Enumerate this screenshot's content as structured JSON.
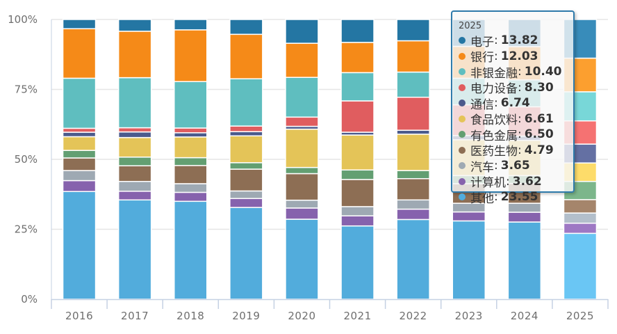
{
  "chart_data": {
    "type": "bar",
    "stacked": true,
    "normalized": true,
    "title": "",
    "xlabel": "",
    "ylabel": "",
    "ylim": [
      0,
      100
    ],
    "y_ticks": [
      "0%",
      "25%",
      "50%",
      "75%",
      "100%"
    ],
    "grid": true,
    "legend": "none",
    "categories": [
      "2016",
      "2017",
      "2018",
      "2019",
      "2020",
      "2021",
      "2022",
      "2023",
      "2024",
      "2025"
    ],
    "series": [
      {
        "name": "其他",
        "color": "#52acdc",
        "values": [
          38.5,
          35.5,
          35.0,
          32.8,
          28.6,
          26.2,
          28.5,
          28.0,
          27.6,
          23.55
        ]
      },
      {
        "name": "计算机",
        "color": "#8662ad",
        "values": [
          3.9,
          3.1,
          3.2,
          3.2,
          4.0,
          3.6,
          3.7,
          3.2,
          3.5,
          3.62
        ]
      },
      {
        "name": "汽车",
        "color": "#9ea9b3",
        "values": [
          3.6,
          3.5,
          3.1,
          2.7,
          2.8,
          3.3,
          3.3,
          3.1,
          3.2,
          3.65
        ]
      },
      {
        "name": "医药生物",
        "color": "#8d6e54",
        "values": [
          4.5,
          5.6,
          6.5,
          7.8,
          9.5,
          9.7,
          7.6,
          7.0,
          7.1,
          4.79
        ]
      },
      {
        "name": "有色金属",
        "color": "#639f72",
        "values": [
          2.7,
          3.1,
          2.8,
          2.3,
          2.2,
          3.4,
          2.9,
          2.9,
          2.8,
          6.5
        ]
      },
      {
        "name": "食品饮料",
        "color": "#e4c458",
        "values": [
          4.9,
          7.0,
          7.4,
          9.6,
          13.7,
          12.5,
          13.0,
          12.8,
          12.6,
          6.61
        ]
      },
      {
        "name": "通信",
        "color": "#4b5a8c",
        "values": [
          1.6,
          2.0,
          1.5,
          1.5,
          1.0,
          1.0,
          1.4,
          1.5,
          1.5,
          6.74
        ]
      },
      {
        "name": "电力设备",
        "color": "#e05d5f",
        "values": [
          1.4,
          1.5,
          1.7,
          2.0,
          3.3,
          11.2,
          11.8,
          11.0,
          10.5,
          8.3
        ]
      },
      {
        "name": "非银金融",
        "color": "#5fbebf",
        "values": [
          17.9,
          17.9,
          16.6,
          16.9,
          14.2,
          10.1,
          9.0,
          9.5,
          9.6,
          10.4
        ]
      },
      {
        "name": "银行",
        "color": "#f58a18",
        "values": [
          17.7,
          16.6,
          18.5,
          15.9,
          12.2,
          10.8,
          11.2,
          11.4,
          11.9,
          12.03
        ]
      },
      {
        "name": "电子",
        "color": "#2476a3",
        "values": [
          3.3,
          4.2,
          3.7,
          5.3,
          8.5,
          8.2,
          7.6,
          9.6,
          9.7,
          13.82
        ]
      }
    ],
    "highlighted_category": "2025",
    "highlight_colors": [
      "#6ac6f4",
      "#9e78c4",
      "#b3bfcb",
      "#a5856b",
      "#7cb68b",
      "#fddc6a",
      "#6470a3",
      "#f57272",
      "#78d7d8",
      "#fc9f2f",
      "#388cba"
    ]
  },
  "tooltip": {
    "title": "2025",
    "separator": ":",
    "items": [
      {
        "name": "电子",
        "value": "13.82",
        "color": "#2476a3"
      },
      {
        "name": "银行",
        "value": "12.03",
        "color": "#f58a18"
      },
      {
        "name": "非银金融",
        "value": "10.40",
        "color": "#5fbebf"
      },
      {
        "name": "电力设备",
        "value": "8.30",
        "color": "#e05d5f"
      },
      {
        "name": "通信",
        "value": "6.74",
        "color": "#4b5a8c"
      },
      {
        "name": "食品饮料",
        "value": "6.61",
        "color": "#e4c458"
      },
      {
        "name": "有色金属",
        "value": "6.50",
        "color": "#639f72"
      },
      {
        "name": "医药生物",
        "value": "4.79",
        "color": "#8d6e54"
      },
      {
        "name": "汽车",
        "value": "3.65",
        "color": "#9ea9b3"
      },
      {
        "name": "计算机",
        "value": "3.62",
        "color": "#8662ad"
      },
      {
        "name": "其他",
        "value": "23.55",
        "color": "#52acdc"
      }
    ]
  }
}
